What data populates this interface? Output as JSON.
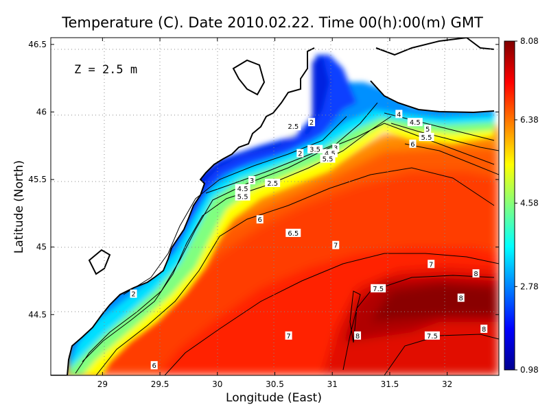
{
  "title": "Temperature (C). Date 2010.02.22. Time 00(h):00(m) GMT",
  "depth_label": "Z  =  2.5  m",
  "x_axis": {
    "label": "Longitude (East)",
    "range": [
      28.55,
      32.45
    ],
    "ticks": [
      "29",
      "29.5",
      "30",
      "30.5",
      "31",
      "31.5",
      "32"
    ]
  },
  "y_axis": {
    "label": "Latitude (North)",
    "range": [
      44.05,
      46.55
    ],
    "ticks": [
      "44.5",
      "45",
      "45.5",
      "46",
      "46.5"
    ]
  },
  "colorbar": {
    "ticks": [
      "0.98",
      "2.78",
      "4.58",
      "6.38",
      "8.08"
    ],
    "min": 0.98,
    "max": 8.08,
    "colors": [
      "#00008f",
      "#0000ff",
      "#0080ff",
      "#00ffff",
      "#80ff80",
      "#ffff00",
      "#ff8000",
      "#ff0000",
      "#800000"
    ]
  },
  "chart_data": {
    "type": "heatmap",
    "title": "Temperature (C). Date 2010.02.22. Time 00(h):00(m) GMT",
    "xlabel": "Longitude (East)",
    "ylabel": "Latitude (North)",
    "xlim": [
      28.55,
      32.45
    ],
    "ylim": [
      44.05,
      46.55
    ],
    "grid": "dotted",
    "value_range": [
      0.98,
      8.08
    ],
    "contour_labels": [
      {
        "text": "2.5",
        "lon": 30.66,
        "lat": 45.89
      },
      {
        "text": "2",
        "lon": 30.82,
        "lat": 45.92
      },
      {
        "text": "4",
        "lon": 31.58,
        "lat": 45.98
      },
      {
        "text": "4.5",
        "lon": 31.72,
        "lat": 45.92
      },
      {
        "text": "5",
        "lon": 31.83,
        "lat": 45.87
      },
      {
        "text": "5.5",
        "lon": 31.82,
        "lat": 45.81
      },
      {
        "text": "6",
        "lon": 31.7,
        "lat": 45.76
      },
      {
        "text": "2",
        "lon": 30.72,
        "lat": 45.69
      },
      {
        "text": "3.5",
        "lon": 30.85,
        "lat": 45.72
      },
      {
        "text": "3",
        "lon": 31.03,
        "lat": 45.73
      },
      {
        "text": "4.5",
        "lon": 30.98,
        "lat": 45.69
      },
      {
        "text": "5.5",
        "lon": 30.96,
        "lat": 45.65
      },
      {
        "text": "3",
        "lon": 30.3,
        "lat": 45.49
      },
      {
        "text": "2.5",
        "lon": 30.48,
        "lat": 45.47
      },
      {
        "text": "4.5",
        "lon": 30.22,
        "lat": 45.43
      },
      {
        "text": "5.5",
        "lon": 30.22,
        "lat": 45.37
      },
      {
        "text": "6",
        "lon": 30.37,
        "lat": 45.2
      },
      {
        "text": "6.5",
        "lon": 30.66,
        "lat": 45.1
      },
      {
        "text": "7",
        "lon": 31.03,
        "lat": 45.01
      },
      {
        "text": "7",
        "lon": 31.86,
        "lat": 44.87
      },
      {
        "text": "8",
        "lon": 32.25,
        "lat": 44.8
      },
      {
        "text": "7.5",
        "lon": 31.4,
        "lat": 44.69
      },
      {
        "text": "8",
        "lon": 32.12,
        "lat": 44.62
      },
      {
        "text": "2",
        "lon": 29.27,
        "lat": 44.65
      },
      {
        "text": "7",
        "lon": 30.62,
        "lat": 44.34
      },
      {
        "text": "8",
        "lon": 31.22,
        "lat": 44.34
      },
      {
        "text": "7.5",
        "lon": 31.87,
        "lat": 44.34
      },
      {
        "text": "8",
        "lon": 32.32,
        "lat": 44.39
      },
      {
        "text": "6",
        "lon": 29.45,
        "lat": 44.12
      }
    ]
  }
}
